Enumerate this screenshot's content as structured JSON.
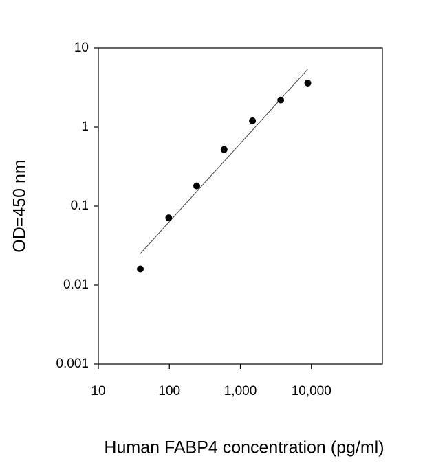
{
  "chart_data": {
    "type": "scatter",
    "x_label": "Human FABP4 concentration (pg/ml)",
    "y_label": "OD=450 nm",
    "x": [
      39,
      98,
      243,
      590,
      1480,
      3700,
      8900
    ],
    "values": [
      0.016,
      0.071,
      0.18,
      0.52,
      1.2,
      2.2,
      3.6
    ],
    "color": "#000000",
    "trendline": {
      "x": [
        39,
        8900
      ],
      "y": [
        0.025,
        5.4
      ],
      "color": "#444444"
    },
    "xlog": true,
    "ylog": true,
    "xlim": [
      10,
      100000
    ],
    "xticks": [
      10,
      100,
      {
        "value": 1000,
        "label": "1,000"
      },
      {
        "value": 10000,
        "label": "10,000"
      }
    ],
    "ylim": [
      0.001,
      10
    ],
    "yticks": [
      0.001,
      0.01,
      0.1,
      1,
      10
    ]
  }
}
